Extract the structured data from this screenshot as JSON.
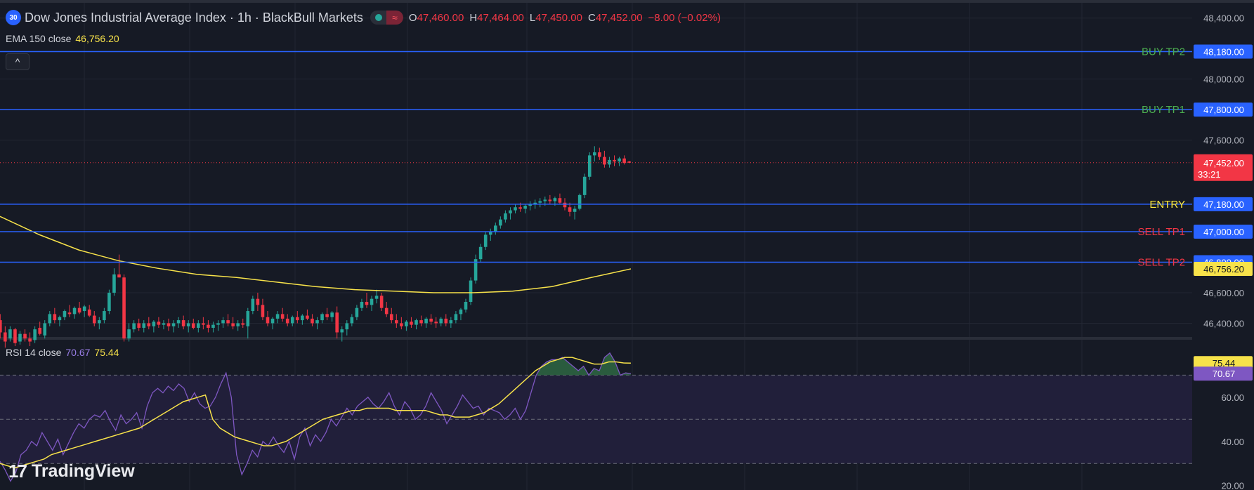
{
  "header": {
    "symbol_badge": "30",
    "title": "Dow Jones Industrial Average Index · 1h · BlackBull Markets",
    "open_label": "O",
    "open_value": "47,460.00",
    "high_label": "H",
    "high_value": "47,464.00",
    "low_label": "L",
    "low_value": "47,450.00",
    "close_label": "C",
    "close_value": "47,452.00",
    "change": "−8.00 (−0.02%)"
  },
  "ema": {
    "label": "EMA 150 close",
    "value": "46,756.20"
  },
  "rsi": {
    "label": "RSI 14 close",
    "value": "70.67",
    "ma_value": "75.44"
  },
  "collapse_icon": "^",
  "logo": {
    "mark": "17",
    "text": "TradingView"
  },
  "chart_data": [
    {
      "type": "candlestick",
      "symbol": "Dow Jones Industrial Average Index",
      "interval": "1h",
      "broker": "BlackBull Markets",
      "price_axis_ticks": [
        48400,
        48000,
        47600,
        46600,
        46400
      ],
      "ylim": [
        46310,
        48500
      ],
      "candles": [
        [
          46420,
          46460,
          46300,
          46340
        ],
        [
          46340,
          46380,
          46240,
          46280
        ],
        [
          46300,
          46380,
          46280,
          46360
        ],
        [
          46360,
          46370,
          46250,
          46270
        ],
        [
          46280,
          46350,
          46260,
          46330
        ],
        [
          46330,
          46360,
          46280,
          46300
        ],
        [
          46300,
          46340,
          46250,
          46280
        ],
        [
          46290,
          46380,
          46270,
          46360
        ],
        [
          46370,
          46410,
          46320,
          46330
        ],
        [
          46320,
          46420,
          46300,
          46400
        ],
        [
          46400,
          46480,
          46380,
          46460
        ],
        [
          46460,
          46500,
          46400,
          46420
        ],
        [
          46420,
          46450,
          46380,
          46440
        ],
        [
          46440,
          46490,
          46420,
          46480
        ],
        [
          46470,
          46520,
          46440,
          46460
        ],
        [
          46460,
          46510,
          46430,
          46500
        ],
        [
          46500,
          46540,
          46460,
          46470
        ],
        [
          46480,
          46520,
          46440,
          46510
        ],
        [
          46490,
          46520,
          46440,
          46450
        ],
        [
          46450,
          46480,
          46380,
          46400
        ],
        [
          46400,
          46440,
          46360,
          46420
        ],
        [
          46420,
          46500,
          46400,
          46480
        ],
        [
          46480,
          46620,
          46460,
          46600
        ],
        [
          46600,
          46760,
          46580,
          46720
        ],
        [
          46720,
          46850,
          46700,
          46700
        ],
        [
          46700,
          46720,
          46280,
          46300
        ],
        [
          46300,
          46400,
          46280,
          46360
        ],
        [
          46360,
          46420,
          46340,
          46400
        ],
        [
          46400,
          46430,
          46350,
          46370
        ],
        [
          46370,
          46420,
          46340,
          46400
        ],
        [
          46400,
          46440,
          46360,
          46380
        ],
        [
          46380,
          46420,
          46340,
          46410
        ],
        [
          46410,
          46440,
          46370,
          46390
        ],
        [
          46390,
          46420,
          46360,
          46400
        ],
        [
          46400,
          46430,
          46350,
          46380
        ],
        [
          46380,
          46420,
          46340,
          46400
        ],
        [
          46400,
          46440,
          46370,
          46420
        ],
        [
          46420,
          46450,
          46360,
          46380
        ],
        [
          46380,
          46420,
          46340,
          46400
        ],
        [
          46400,
          46430,
          46360,
          46370
        ],
        [
          46370,
          46420,
          46340,
          46400
        ],
        [
          46400,
          46440,
          46360,
          46390
        ],
        [
          46390,
          46420,
          46340,
          46370
        ],
        [
          46370,
          46410,
          46340,
          46390
        ],
        [
          46390,
          46420,
          46350,
          46400
        ],
        [
          46400,
          46440,
          46370,
          46420
        ],
        [
          46420,
          46460,
          46380,
          46400
        ],
        [
          46400,
          46440,
          46360,
          46380
        ],
        [
          46380,
          46420,
          46350,
          46400
        ],
        [
          46400,
          46430,
          46370,
          46390
        ],
        [
          46380,
          46500,
          46300,
          46480
        ],
        [
          46480,
          46580,
          46460,
          46560
        ],
        [
          46560,
          46600,
          46480,
          46520
        ],
        [
          46520,
          46560,
          46420,
          46440
        ],
        [
          46440,
          46480,
          46380,
          46400
        ],
        [
          46400,
          46440,
          46360,
          46430
        ],
        [
          46430,
          46480,
          46400,
          46460
        ],
        [
          46460,
          46500,
          46410,
          46430
        ],
        [
          46430,
          46460,
          46380,
          46400
        ],
        [
          46400,
          46450,
          46380,
          46440
        ],
        [
          46440,
          46480,
          46400,
          46420
        ],
        [
          46420,
          46460,
          46390,
          46450
        ],
        [
          46450,
          46490,
          46420,
          46430
        ],
        [
          46430,
          46460,
          46380,
          46400
        ],
        [
          46400,
          46440,
          46360,
          46420
        ],
        [
          46420,
          46470,
          46400,
          46460
        ],
        [
          46460,
          46500,
          46420,
          46440
        ],
        [
          46440,
          46480,
          46410,
          46470
        ],
        [
          46470,
          46510,
          46300,
          46340
        ],
        [
          46340,
          46380,
          46280,
          46360
        ],
        [
          46360,
          46420,
          46320,
          46400
        ],
        [
          46400,
          46460,
          46380,
          46440
        ],
        [
          46440,
          46520,
          46420,
          46500
        ],
        [
          46500,
          46560,
          46480,
          46540
        ],
        [
          46540,
          46600,
          46500,
          46520
        ],
        [
          46520,
          46580,
          46480,
          46560
        ],
        [
          46560,
          46620,
          46530,
          46580
        ],
        [
          46580,
          46600,
          46480,
          46500
        ],
        [
          46500,
          46540,
          46440,
          46460
        ],
        [
          46460,
          46500,
          46400,
          46420
        ],
        [
          46420,
          46460,
          46370,
          46400
        ],
        [
          46400,
          46440,
          46360,
          46380
        ],
        [
          46380,
          46420,
          46350,
          46410
        ],
        [
          46410,
          46440,
          46370,
          46390
        ],
        [
          46390,
          46430,
          46360,
          46420
        ],
        [
          46420,
          46450,
          46380,
          46400
        ],
        [
          46400,
          46440,
          46370,
          46430
        ],
        [
          46430,
          46460,
          46390,
          46410
        ],
        [
          46410,
          46440,
          46370,
          46400
        ],
        [
          46400,
          46440,
          46380,
          46430
        ],
        [
          46430,
          46460,
          46380,
          46400
        ],
        [
          46400,
          46440,
          46370,
          46420
        ],
        [
          46420,
          46480,
          46400,
          46460
        ],
        [
          46460,
          46500,
          46420,
          46490
        ],
        [
          46490,
          46560,
          46470,
          46540
        ],
        [
          46540,
          46700,
          46520,
          46680
        ],
        [
          46680,
          46850,
          46660,
          46820
        ],
        [
          46820,
          46920,
          46800,
          46900
        ],
        [
          46900,
          47000,
          46880,
          46980
        ],
        [
          46980,
          47020,
          46940,
          47000
        ],
        [
          47000,
          47060,
          46980,
          47040
        ],
        [
          47040,
          47100,
          47020,
          47080
        ],
        [
          47080,
          47140,
          47060,
          47120
        ],
        [
          47120,
          47160,
          47080,
          47140
        ],
        [
          47140,
          47180,
          47120,
          47160
        ],
        [
          47160,
          47190,
          47130,
          47150
        ],
        [
          47150,
          47180,
          47120,
          47170
        ],
        [
          47170,
          47200,
          47140,
          47180
        ],
        [
          47180,
          47210,
          47150,
          47190
        ],
        [
          47190,
          47220,
          47160,
          47200
        ],
        [
          47200,
          47230,
          47170,
          47210
        ],
        [
          47210,
          47240,
          47180,
          47200
        ],
        [
          47200,
          47230,
          47170,
          47220
        ],
        [
          47220,
          47250,
          47180,
          47190
        ],
        [
          47190,
          47220,
          47140,
          47160
        ],
        [
          47160,
          47190,
          47100,
          47130
        ],
        [
          47130,
          47170,
          47080,
          47150
        ],
        [
          47150,
          47250,
          47140,
          47240
        ],
        [
          47240,
          47380,
          47220,
          47360
        ],
        [
          47360,
          47520,
          47340,
          47500
        ],
        [
          47500,
          47560,
          47460,
          47520
        ],
        [
          47520,
          47550,
          47470,
          47490
        ],
        [
          47490,
          47530,
          47420,
          47440
        ],
        [
          47440,
          47490,
          47420,
          47470
        ],
        [
          47470,
          47500,
          47430,
          47460
        ],
        [
          47460,
          47490,
          47430,
          47480
        ],
        [
          47480,
          47500,
          47440,
          47450
        ],
        [
          47460,
          47464,
          47450,
          47452
        ]
      ],
      "ema150": [
        47100,
        46980,
        46880,
        46810,
        46760,
        46720,
        46700,
        46670,
        46640,
        46620,
        46610,
        46600,
        46600,
        46610,
        46640,
        46700,
        46756.2
      ],
      "last_price": 47452.0,
      "ema_last": 46756.2,
      "bar_countdown": "33:21",
      "levels": [
        {
          "name": "BUY TP2",
          "price": 48180,
          "label": "48,180.00",
          "text_color": "#4caf50"
        },
        {
          "name": "BUY TP1",
          "price": 47800,
          "label": "47,800.00",
          "text_color": "#4caf50"
        },
        {
          "name": "ENTRY",
          "price": 47180,
          "label": "47,180.00",
          "text_color": "#ffeb3b"
        },
        {
          "name": "SELL TP1",
          "price": 47000,
          "label": "47,000.00",
          "text_color": "#f23645"
        },
        {
          "name": "SELL TP2",
          "price": 46800,
          "label": "46,800.00",
          "text_color": "#f23645"
        }
      ],
      "colors": {
        "up": "#26a69a",
        "down": "#f23645",
        "level_line": "#2962ff",
        "ema": "#f7e24a",
        "grid": "#232733",
        "background": "#161a25"
      }
    },
    {
      "type": "line",
      "title": "RSI 14 close",
      "y_axis_ticks": [
        60.0,
        40.0,
        20.0
      ],
      "ylim": [
        18,
        86
      ],
      "bands": [
        70,
        50,
        30
      ],
      "rsi": [
        31,
        27,
        22,
        26,
        34,
        36,
        40,
        38,
        44,
        40,
        36,
        41,
        34,
        39,
        44,
        48,
        46,
        50,
        52,
        51,
        54,
        49,
        45,
        52,
        48,
        50,
        53,
        46,
        56,
        62,
        64,
        62,
        65,
        63,
        66,
        64,
        58,
        62,
        57,
        55,
        56,
        60,
        66,
        71,
        60,
        34,
        25,
        30,
        36,
        33,
        40,
        38,
        42,
        38,
        35,
        40,
        32,
        42,
        46,
        38,
        43,
        40,
        44,
        50,
        47,
        51,
        55,
        52,
        56,
        58,
        60,
        57,
        55,
        58,
        62,
        56,
        52,
        58,
        55,
        50,
        52,
        56,
        62,
        58,
        54,
        48,
        52,
        56,
        61,
        58,
        55,
        56,
        52,
        55,
        54,
        53,
        50,
        52,
        55,
        50,
        54,
        62,
        70,
        74,
        76,
        77,
        77,
        78,
        76,
        74,
        72,
        74,
        70,
        73,
        72,
        78,
        80,
        76,
        70,
        71,
        70.67
      ],
      "rsi_ma": [
        30,
        29,
        28,
        29,
        30,
        31,
        32,
        34,
        35,
        36,
        37,
        38,
        39,
        40,
        41,
        42,
        43,
        44,
        45,
        46,
        48,
        50,
        52,
        54,
        56,
        58,
        59,
        60,
        61,
        50,
        46,
        44,
        42,
        41,
        40,
        39,
        38,
        38,
        39,
        40,
        42,
        44,
        46,
        48,
        50,
        51,
        52,
        53,
        54,
        54,
        55,
        55,
        55,
        55,
        54,
        54,
        54,
        54,
        54,
        53,
        52,
        52,
        51,
        51,
        51,
        52,
        53,
        55,
        57,
        60,
        63,
        66,
        69,
        72,
        74,
        76,
        77,
        78,
        78,
        77,
        76,
        75,
        75,
        76,
        76,
        75.5,
        75.44
      ],
      "rsi_last": 70.67,
      "ma_last": 75.44,
      "colors": {
        "rsi": "#7e57c2",
        "ma": "#f7e24a",
        "band_fill": "#211f3a",
        "overbought_fill": "#2f6b45"
      }
    }
  ]
}
